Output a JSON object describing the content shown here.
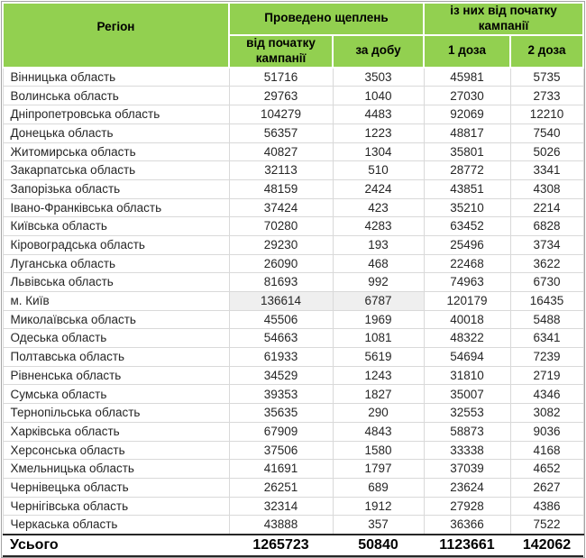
{
  "table": {
    "header": {
      "region": "Регіон",
      "group_vaccinations": "Проведено щеплень",
      "group_since_start": "із них від початку кампанії",
      "sub_since_start": "від початку кампанії",
      "sub_per_day": "за добу",
      "sub_dose1": "1 доза",
      "sub_dose2": "2 доза"
    },
    "rows": [
      {
        "name": "Вінницька область",
        "values": [
          51716,
          3503,
          45981,
          5735
        ],
        "highlight": false
      },
      {
        "name": "Волинська область",
        "values": [
          29763,
          1040,
          27030,
          2733
        ],
        "highlight": false
      },
      {
        "name": "Дніпропетровська область",
        "values": [
          104279,
          4483,
          92069,
          12210
        ],
        "highlight": false
      },
      {
        "name": "Донецька область",
        "values": [
          56357,
          1223,
          48817,
          7540
        ],
        "highlight": false
      },
      {
        "name": "Житомирська область",
        "values": [
          40827,
          1304,
          35801,
          5026
        ],
        "highlight": false
      },
      {
        "name": "Закарпатська область",
        "values": [
          32113,
          510,
          28772,
          3341
        ],
        "highlight": false
      },
      {
        "name": "Запорізька область",
        "values": [
          48159,
          2424,
          43851,
          4308
        ],
        "highlight": false
      },
      {
        "name": "Івано-Франківська область",
        "values": [
          37424,
          423,
          35210,
          2214
        ],
        "highlight": false
      },
      {
        "name": "Київська область",
        "values": [
          70280,
          4283,
          63452,
          6828
        ],
        "highlight": false
      },
      {
        "name": "Кіровоградська область",
        "values": [
          29230,
          193,
          25496,
          3734
        ],
        "highlight": false
      },
      {
        "name": "Луганська область",
        "values": [
          26090,
          468,
          22468,
          3622
        ],
        "highlight": false
      },
      {
        "name": "Львівська область",
        "values": [
          81693,
          992,
          74963,
          6730
        ],
        "highlight": false
      },
      {
        "name": "м. Київ",
        "values": [
          136614,
          6787,
          120179,
          16435
        ],
        "highlight": true
      },
      {
        "name": "Миколаївська область",
        "values": [
          45506,
          1969,
          40018,
          5488
        ],
        "highlight": false
      },
      {
        "name": "Одеська область",
        "values": [
          54663,
          1081,
          48322,
          6341
        ],
        "highlight": false
      },
      {
        "name": "Полтавська область",
        "values": [
          61933,
          5619,
          54694,
          7239
        ],
        "highlight": false
      },
      {
        "name": "Рівненська область",
        "values": [
          34529,
          1243,
          31810,
          2719
        ],
        "highlight": false
      },
      {
        "name": "Сумська область",
        "values": [
          39353,
          1827,
          35007,
          4346
        ],
        "highlight": false
      },
      {
        "name": "Тернопільська область",
        "values": [
          35635,
          290,
          32553,
          3082
        ],
        "highlight": false
      },
      {
        "name": "Харківська область",
        "values": [
          67909,
          4843,
          58873,
          9036
        ],
        "highlight": false
      },
      {
        "name": "Херсонська область",
        "values": [
          37506,
          1580,
          33338,
          4168
        ],
        "highlight": false
      },
      {
        "name": "Хмельницька область",
        "values": [
          41691,
          1797,
          37039,
          4652
        ],
        "highlight": false
      },
      {
        "name": "Чернівецька область",
        "values": [
          26251,
          689,
          23624,
          2627
        ],
        "highlight": false
      },
      {
        "name": "Чернігівська область",
        "values": [
          32314,
          1912,
          27928,
          4386
        ],
        "highlight": false
      },
      {
        "name": "Черкаська область",
        "values": [
          43888,
          357,
          36366,
          7522
        ],
        "highlight": false
      }
    ],
    "total": {
      "label": "Усього",
      "values": [
        1265723,
        50840,
        1123661,
        142062
      ]
    }
  },
  "colors": {
    "header_bg": "#92d050",
    "header_text": "#000000",
    "grid_line": "#d9d9d9",
    "outer_border": "#a3a3a3",
    "highlight_bg": "#efefef",
    "total_border": "#262626"
  }
}
